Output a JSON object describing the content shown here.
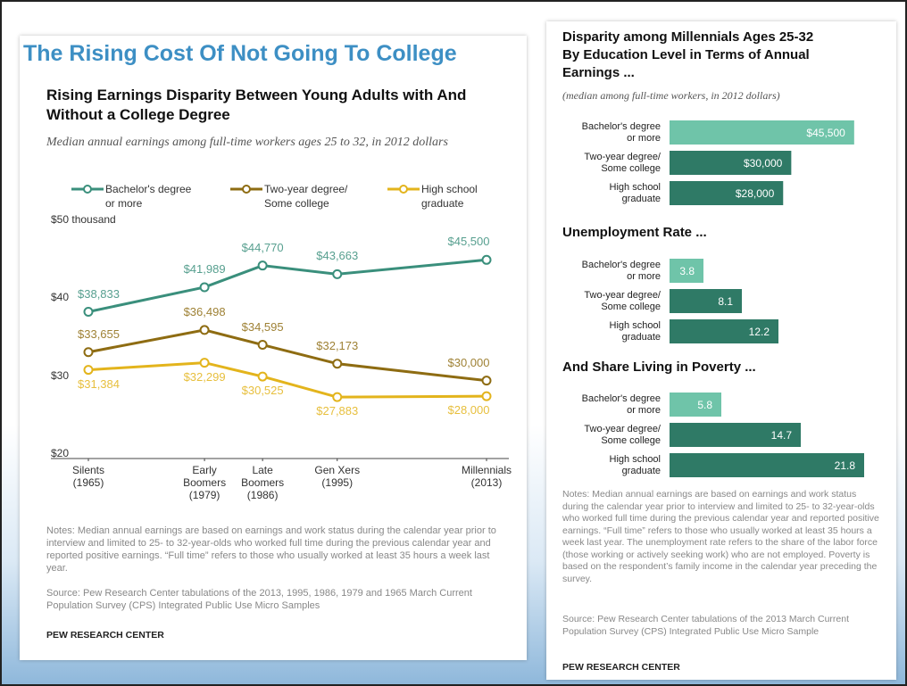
{
  "title": "The Rising Cost Of Not Going To College",
  "chart_data": [
    {
      "type": "line",
      "title": "Rising Earnings Disparity Between Young Adults with And Without a College Degree",
      "subtitle": "Median annual earnings among full-time workers ages 25 to 32, in 2012 dollars",
      "x": [
        1965,
        1979,
        1986,
        1995,
        2013
      ],
      "xlim": [
        1965,
        2013
      ],
      "xticks": [
        {
          "value": 1965,
          "label": "Silents\n(1965)"
        },
        {
          "value": 1979,
          "label": "Early\nBoomers\n(1979)"
        },
        {
          "value": 1986,
          "label": "Late\nBoomers\n(1986)"
        },
        {
          "value": 1995,
          "label": "Gen Xers\n(1995)"
        },
        {
          "value": 2013,
          "label": "Millennials\n(2013)"
        }
      ],
      "ylim": [
        20,
        50
      ],
      "yticks": [
        {
          "value": 20,
          "label": "$20"
        },
        {
          "value": 30,
          "label": "$30"
        },
        {
          "value": 40,
          "label": "$40"
        },
        {
          "value": 50,
          "label": "$50 thousand"
        }
      ],
      "series": [
        {
          "name": "Bachelor's degree\nor more",
          "color": "#3a8f7c",
          "values": [
            38.833,
            41.989,
            44.77,
            43.663,
            45.5
          ],
          "value_labels": [
            "$38,833",
            "$41,989",
            "$44,770",
            "$43,663",
            "$45,500"
          ]
        },
        {
          "name": "Two-year degree/\nSome college",
          "color": "#8e6c12",
          "values": [
            33.655,
            36.498,
            34.595,
            32.173,
            30
          ],
          "value_labels": [
            "$33,655",
            "$36,498",
            "$34,595",
            "$32,173",
            "$30,000"
          ]
        },
        {
          "name": "High school\ngraduate",
          "color": "#e3b41c",
          "values": [
            31.384,
            32.299,
            30.525,
            27.883,
            28
          ],
          "value_labels": [
            "$31,384",
            "$32,299",
            "$30,525",
            "$27,883",
            "$28,000"
          ]
        }
      ],
      "notes": "Notes: Median annual earnings are based on earnings and work status during the calendar year prior to interview and limited to 25- to 32-year-olds who worked full time during the previous calendar year and reported positive earnings. “Full time” refers to those who usually worked at least 35 hours a week last year.",
      "source": "Source: Pew Research Center tabulations of the 2013, 1995, 1986, 1979 and 1965 March Current Population Survey (CPS) Integrated Public Use Micro Samples",
      "credit": "PEW RESEARCH CENTER"
    },
    {
      "type": "hbar",
      "title": "Disparity among Millennials Ages 25-32 By Education Level in Terms of Annual Earnings ...",
      "subtitle": "(median among full-time workers, in 2012 dollars)",
      "categories": [
        "Bachelor's degree\nor more",
        "Two-year degree/\nSome college",
        "High school\ngraduate"
      ],
      "values": [
        45500,
        30000,
        28000
      ],
      "value_labels": [
        "$45,500",
        "$30,000",
        "$28,000"
      ],
      "colors": [
        "#6fc4a9",
        "#2f7a66",
        "#2f7a66"
      ],
      "xlim": [
        0,
        55000
      ]
    },
    {
      "type": "hbar",
      "title": "Unemployment Rate ...",
      "categories": [
        "Bachelor's degree\nor more",
        "Two-year degree/\nSome college",
        "High school\ngraduate"
      ],
      "values": [
        3.8,
        8.1,
        12.2
      ],
      "colors": [
        "#6fc4a9",
        "#2f7a66",
        "#2f7a66"
      ],
      "xlim": [
        0,
        25
      ]
    },
    {
      "type": "hbar",
      "title": "And Share Living in Poverty ...",
      "categories": [
        "Bachelor's degree\nor more",
        "Two-year degree/\nSome college",
        "High school\ngraduate"
      ],
      "values": [
        5.8,
        14.7,
        21.8
      ],
      "colors": [
        "#6fc4a9",
        "#2f7a66",
        "#2f7a66"
      ],
      "xlim": [
        0,
        25
      ],
      "notes": "Notes: Median annual earnings are based on earnings and work status during the calendar year prior to interview and limited to 25- to 32-year-olds who worked full time during the previous calendar year and reported positive earnings. “Full time” refers to those who usually worked at least 35 hours a week last year. The unemployment rate refers to the share of the labor force (those working or actively seeking work) who are not employed. Poverty is based on the respondent’s family income in the calendar year preceding the survey.",
      "source": "Source: Pew Research Center tabulations of the 2013 March Current Population Survey (CPS) Integrated Public Use Micro Sample",
      "credit": "PEW RESEARCH CENTER"
    }
  ]
}
